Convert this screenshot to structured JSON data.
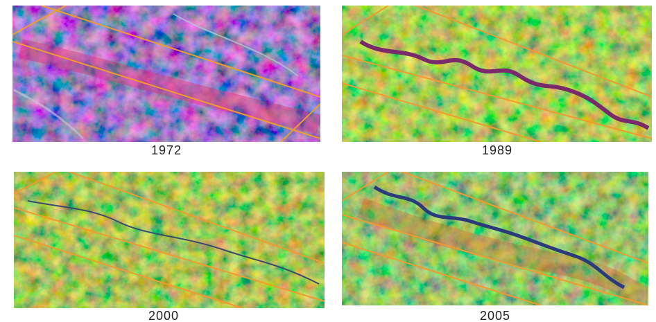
{
  "panels": [
    {
      "caption": "1972"
    },
    {
      "caption": "1989"
    },
    {
      "caption": "2000"
    },
    {
      "caption": "2005"
    }
  ]
}
